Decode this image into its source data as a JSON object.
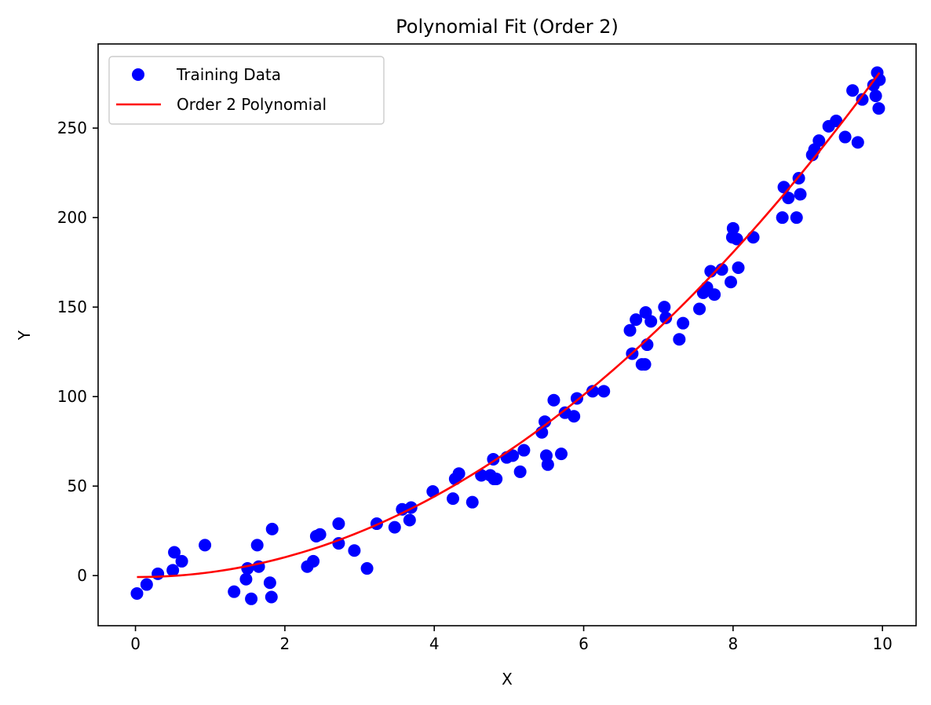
{
  "chart_data": {
    "type": "scatter",
    "title": "Polynomial Fit (Order 2)",
    "xlabel": "X",
    "ylabel": "Y",
    "xlim": [
      -0.5,
      10.45
    ],
    "ylim": [
      -28,
      297
    ],
    "xticks": [
      0,
      2,
      4,
      6,
      8,
      10
    ],
    "yticks": [
      0,
      50,
      100,
      150,
      200,
      250
    ],
    "grid": false,
    "legend_position": "top-left",
    "colors": {
      "scatter": "#0000ff",
      "fit": "#ff0000"
    },
    "series": [
      {
        "name": "Training Data",
        "kind": "scatter",
        "points": [
          [
            0.02,
            -10
          ],
          [
            0.15,
            -5
          ],
          [
            0.3,
            1
          ],
          [
            0.5,
            3
          ],
          [
            0.52,
            13
          ],
          [
            0.62,
            8
          ],
          [
            0.93,
            17
          ],
          [
            1.32,
            -9
          ],
          [
            1.48,
            -2
          ],
          [
            1.5,
            4
          ],
          [
            1.55,
            -13
          ],
          [
            1.63,
            17
          ],
          [
            1.65,
            5
          ],
          [
            1.8,
            -4
          ],
          [
            1.82,
            -12
          ],
          [
            1.83,
            26
          ],
          [
            2.3,
            5
          ],
          [
            2.38,
            8
          ],
          [
            2.42,
            22
          ],
          [
            2.47,
            23
          ],
          [
            2.72,
            29
          ],
          [
            2.72,
            18
          ],
          [
            2.93,
            14
          ],
          [
            3.1,
            4
          ],
          [
            3.23,
            29
          ],
          [
            3.47,
            27
          ],
          [
            3.57,
            37
          ],
          [
            3.67,
            31
          ],
          [
            3.69,
            38
          ],
          [
            3.98,
            47
          ],
          [
            4.25,
            43
          ],
          [
            4.28,
            54
          ],
          [
            4.33,
            57
          ],
          [
            4.51,
            41
          ],
          [
            4.63,
            56
          ],
          [
            4.75,
            56
          ],
          [
            4.79,
            65
          ],
          [
            4.8,
            54
          ],
          [
            4.83,
            54
          ],
          [
            4.97,
            66
          ],
          [
            5.05,
            67
          ],
          [
            5.15,
            58
          ],
          [
            5.2,
            70
          ],
          [
            5.44,
            80
          ],
          [
            5.48,
            86
          ],
          [
            5.5,
            67
          ],
          [
            5.52,
            62
          ],
          [
            5.6,
            98
          ],
          [
            5.7,
            68
          ],
          [
            5.75,
            91
          ],
          [
            5.87,
            89
          ],
          [
            5.91,
            99
          ],
          [
            6.12,
            103
          ],
          [
            6.27,
            103
          ],
          [
            6.62,
            137
          ],
          [
            6.65,
            124
          ],
          [
            6.7,
            143
          ],
          [
            6.78,
            118
          ],
          [
            6.82,
            118
          ],
          [
            6.83,
            147
          ],
          [
            6.85,
            129
          ],
          [
            6.9,
            142
          ],
          [
            7.08,
            150
          ],
          [
            7.1,
            144
          ],
          [
            7.28,
            132
          ],
          [
            7.33,
            141
          ],
          [
            7.55,
            149
          ],
          [
            7.6,
            158
          ],
          [
            7.65,
            161
          ],
          [
            7.7,
            170
          ],
          [
            7.75,
            157
          ],
          [
            7.85,
            171
          ],
          [
            7.97,
            164
          ],
          [
            7.99,
            189
          ],
          [
            8.0,
            194
          ],
          [
            8.05,
            188
          ],
          [
            8.07,
            172
          ],
          [
            8.27,
            189
          ],
          [
            8.66,
            200
          ],
          [
            8.68,
            217
          ],
          [
            8.74,
            211
          ],
          [
            8.85,
            200
          ],
          [
            8.88,
            222
          ],
          [
            8.9,
            213
          ],
          [
            9.06,
            235
          ],
          [
            9.09,
            238
          ],
          [
            9.15,
            243
          ],
          [
            9.28,
            251
          ],
          [
            9.38,
            254
          ],
          [
            9.5,
            245
          ],
          [
            9.6,
            271
          ],
          [
            9.67,
            242
          ],
          [
            9.73,
            266
          ],
          [
            9.88,
            274
          ],
          [
            9.91,
            268
          ],
          [
            9.93,
            281
          ],
          [
            9.95,
            261
          ],
          [
            9.96,
            277
          ]
        ]
      },
      {
        "name": "Order 2 Polynomial",
        "kind": "line",
        "coefficients": {
          "a": 2.86,
          "b": -0.2,
          "c": -0.8
        },
        "x_range": [
          0.02,
          9.96
        ]
      }
    ]
  }
}
